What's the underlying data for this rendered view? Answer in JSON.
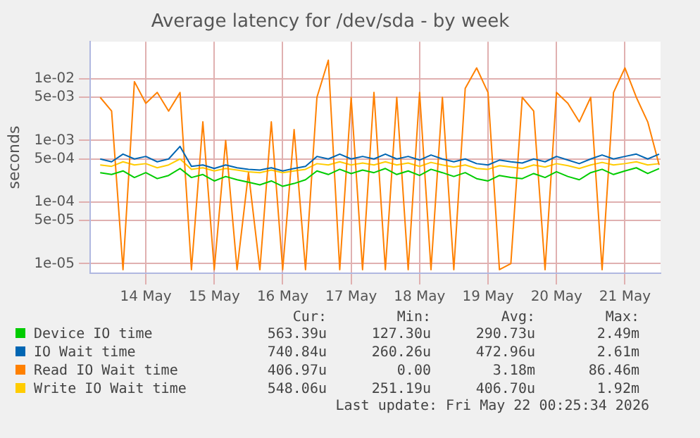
{
  "chart_data": {
    "type": "line",
    "title": "Average latency for /dev/sda - by week",
    "ylabel": "seconds",
    "log": "y",
    "grid": true,
    "legend": "bottom",
    "marker": "none",
    "line_style": "solid",
    "ylim": [
      7e-06,
      0.04
    ],
    "yticks": [
      {
        "value": 1e-05,
        "label": "1e-05"
      },
      {
        "value": 5e-05,
        "label": "5e-05"
      },
      {
        "value": 0.0001,
        "label": "1e-04"
      },
      {
        "value": 0.0005,
        "label": "5e-04"
      },
      {
        "value": 0.001,
        "label": "1e-03"
      },
      {
        "value": 0.005,
        "label": "5e-03"
      },
      {
        "value": 0.01,
        "label": "1e-02"
      }
    ],
    "xlim": [
      "2026-05-13T16:30",
      "2026-05-22T00:30"
    ],
    "xticks": [
      {
        "value": "2026-05-14T12:00",
        "label": "14 May"
      },
      {
        "value": "2026-05-15T12:00",
        "label": "15 May"
      },
      {
        "value": "2026-05-16T12:00",
        "label": "16 May"
      },
      {
        "value": "2026-05-17T12:00",
        "label": "17 May"
      },
      {
        "value": "2026-05-18T12:00",
        "label": "18 May"
      },
      {
        "value": "2026-05-19T12:00",
        "label": "19 May"
      },
      {
        "value": "2026-05-20T12:00",
        "label": "20 May"
      },
      {
        "value": "2026-05-21T12:00",
        "label": "21 May"
      }
    ],
    "x": [
      "2026-05-13T20:00",
      "2026-05-14T00:00",
      "2026-05-14T04:00",
      "2026-05-14T08:00",
      "2026-05-14T12:00",
      "2026-05-14T16:00",
      "2026-05-14T20:00",
      "2026-05-15T00:00",
      "2026-05-15T04:00",
      "2026-05-15T08:00",
      "2026-05-15T12:00",
      "2026-05-15T16:00",
      "2026-05-15T20:00",
      "2026-05-16T00:00",
      "2026-05-16T04:00",
      "2026-05-16T08:00",
      "2026-05-16T12:00",
      "2026-05-16T16:00",
      "2026-05-16T20:00",
      "2026-05-17T00:00",
      "2026-05-17T04:00",
      "2026-05-17T08:00",
      "2026-05-17T12:00",
      "2026-05-17T16:00",
      "2026-05-17T20:00",
      "2026-05-18T00:00",
      "2026-05-18T04:00",
      "2026-05-18T08:00",
      "2026-05-18T12:00",
      "2026-05-18T16:00",
      "2026-05-18T20:00",
      "2026-05-19T00:00",
      "2026-05-19T04:00",
      "2026-05-19T08:00",
      "2026-05-19T12:00",
      "2026-05-19T16:00",
      "2026-05-19T20:00",
      "2026-05-20T00:00",
      "2026-05-20T04:00",
      "2026-05-20T08:00",
      "2026-05-20T12:00",
      "2026-05-20T16:00",
      "2026-05-20T20:00",
      "2026-05-21T00:00",
      "2026-05-21T04:00",
      "2026-05-21T08:00",
      "2026-05-21T12:00",
      "2026-05-21T16:00",
      "2026-05-21T20:00",
      "2026-05-22T00:00"
    ],
    "series": [
      {
        "name": "Device IO time",
        "color": "#00cc00",
        "values": [
          0.0003,
          0.00028,
          0.00032,
          0.00025,
          0.0003,
          0.00024,
          0.00027,
          0.00035,
          0.00025,
          0.00028,
          0.00022,
          0.00026,
          0.00023,
          0.00021,
          0.00019,
          0.00022,
          0.00018,
          0.0002,
          0.00023,
          0.00032,
          0.00028,
          0.00034,
          0.00029,
          0.00033,
          0.0003,
          0.00035,
          0.00028,
          0.00032,
          0.00027,
          0.00034,
          0.0003,
          0.00026,
          0.0003,
          0.00024,
          0.00022,
          0.00027,
          0.00025,
          0.00024,
          0.00029,
          0.00025,
          0.00031,
          0.00026,
          0.00023,
          0.0003,
          0.00034,
          0.00028,
          0.00032,
          0.00036,
          0.00029,
          0.00035
        ]
      },
      {
        "name": "IO Wait time",
        "color": "#0066b3",
        "values": [
          0.0005,
          0.00045,
          0.0006,
          0.0005,
          0.00055,
          0.00045,
          0.0005,
          0.0008,
          0.00038,
          0.0004,
          0.00035,
          0.0004,
          0.00036,
          0.00034,
          0.00033,
          0.00036,
          0.00032,
          0.00035,
          0.00038,
          0.00055,
          0.0005,
          0.0006,
          0.0005,
          0.00055,
          0.0005,
          0.0006,
          0.0005,
          0.00055,
          0.00048,
          0.00058,
          0.0005,
          0.00045,
          0.0005,
          0.00042,
          0.0004,
          0.00048,
          0.00045,
          0.00043,
          0.0005,
          0.00045,
          0.00055,
          0.00048,
          0.00042,
          0.0005,
          0.00058,
          0.0005,
          0.00055,
          0.0006,
          0.0005,
          0.0006
        ]
      },
      {
        "name": "Read IO Wait time",
        "color": "#ff8000",
        "values": [
          0.005,
          0.003,
          8e-06,
          0.009,
          0.004,
          0.006,
          0.003,
          0.006,
          8e-06,
          0.002,
          8e-06,
          0.001,
          8e-06,
          0.0003,
          8e-06,
          0.002,
          8e-06,
          0.0015,
          8e-06,
          0.005,
          0.02,
          8e-06,
          0.005,
          8e-06,
          0.006,
          8e-06,
          0.005,
          8e-06,
          0.006,
          8e-06,
          0.005,
          8e-06,
          0.007,
          0.015,
          0.006,
          8e-06,
          1e-05,
          0.005,
          0.003,
          8e-06,
          0.006,
          0.004,
          0.002,
          0.005,
          8e-06,
          0.006,
          0.015,
          0.005,
          0.002,
          0.0004
        ]
      },
      {
        "name": "Write IO Wait time",
        "color": "#ffcc00",
        "values": [
          0.0004,
          0.00038,
          0.00045,
          0.0004,
          0.00042,
          0.00036,
          0.0004,
          0.0005,
          0.00034,
          0.00036,
          0.00032,
          0.00035,
          0.00033,
          0.00031,
          0.0003,
          0.00033,
          0.0003,
          0.00032,
          0.00034,
          0.00042,
          0.0004,
          0.00045,
          0.0004,
          0.00043,
          0.0004,
          0.00045,
          0.0004,
          0.00043,
          0.00038,
          0.00044,
          0.0004,
          0.00037,
          0.0004,
          0.00035,
          0.00034,
          0.00039,
          0.00037,
          0.00035,
          0.0004,
          0.00037,
          0.00042,
          0.00039,
          0.00035,
          0.0004,
          0.00044,
          0.0004,
          0.00042,
          0.00045,
          0.0004,
          0.00042
        ]
      }
    ],
    "annotations": [
      "Cur:",
      "Min:",
      "Avg:",
      "Max:",
      "563.39u",
      "127.30u",
      "290.73u",
      "2.49m",
      "740.84u",
      "260.26u",
      "472.96u",
      "2.61m",
      "406.97u",
      "0.00",
      "3.18m",
      "86.46m",
      "548.06u",
      "251.19u",
      "406.70u",
      "1.92m",
      "Last update: Fri May 22 00:25:34 2026"
    ]
  }
}
